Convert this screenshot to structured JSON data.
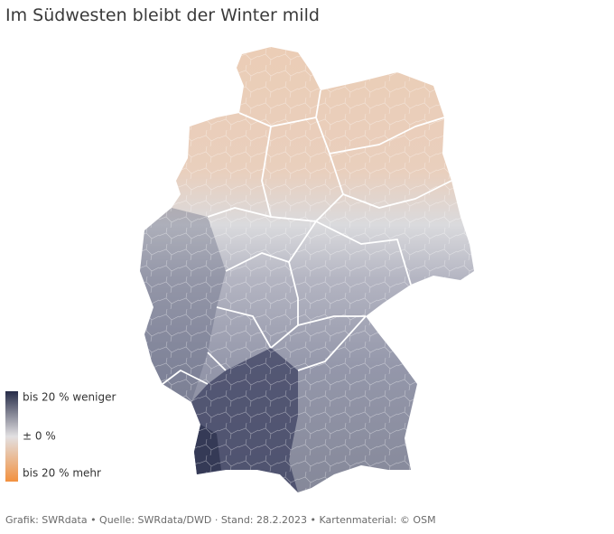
{
  "title": "Im Südwesten bleibt der Winter mild",
  "legend": {
    "top": "bis 20 % weniger",
    "middle": "± 0 %",
    "bottom": "bis 20 % mehr"
  },
  "footer": "Grafik: SWRdata • Quelle: SWRdata/DWD · Stand: 28.2.2023 • Kartenmaterial: © OSM"
}
